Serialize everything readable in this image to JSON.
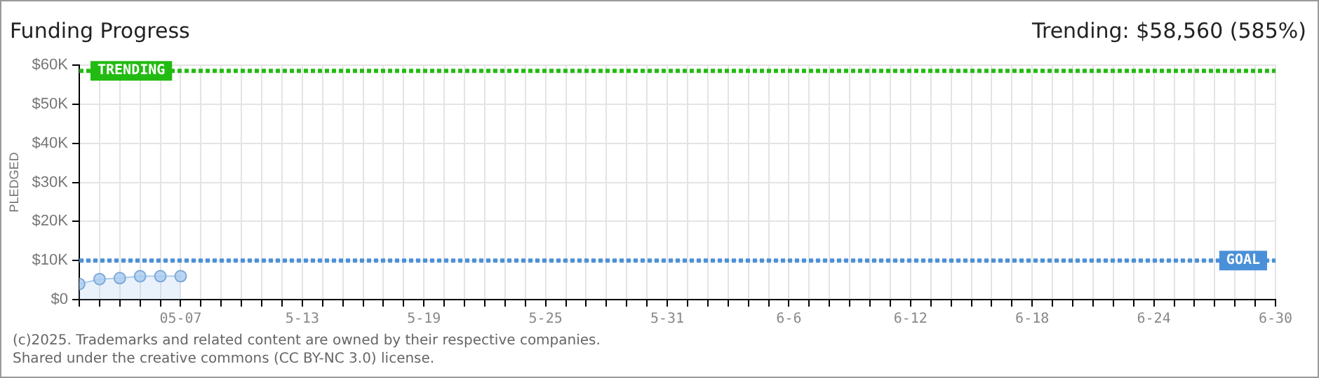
{
  "chart_data": {
    "type": "area",
    "title": "Funding Progress",
    "ylabel": "PLEDGED",
    "annotations": [
      "Trending: $58,560 (585%)",
      "(c)2025. Trademarks and related content are owned by their respective companies.",
      "Shared under the creative commons (CC BY-NC 3.0) license."
    ],
    "x": [
      "--05-02",
      "--05-03",
      "--05-04",
      "--05-05",
      "--05-06",
      "--05-07"
    ],
    "series": [
      {
        "color": "#a8ccf0",
        "values": [
          4000,
          5250,
          5500,
          6000,
          6000,
          6000
        ]
      }
    ],
    "marker": "circle",
    "grid": true,
    "legend": false,
    "xlim": [
      "--05-02",
      "--06-30"
    ],
    "xticks": [
      {
        "value": "--05-02",
        "label": null
      },
      {
        "value": "--05-03",
        "label": null
      },
      {
        "value": "--05-04",
        "label": null
      },
      {
        "value": "--05-05",
        "label": null
      },
      {
        "value": "--05-06",
        "label": null
      },
      {
        "value": "--05-07",
        "label": "05-07"
      },
      {
        "value": "--05-08",
        "label": null
      },
      {
        "value": "--05-09",
        "label": null
      },
      {
        "value": "--05-10",
        "label": null
      },
      {
        "value": "--05-11",
        "label": null
      },
      {
        "value": "--05-12",
        "label": null
      },
      {
        "value": "--05-13",
        "label": "5-13"
      },
      {
        "value": "--05-14",
        "label": null
      },
      {
        "value": "--05-15",
        "label": null
      },
      {
        "value": "--05-16",
        "label": null
      },
      {
        "value": "--05-17",
        "label": null
      },
      {
        "value": "--05-18",
        "label": null
      },
      {
        "value": "--05-19",
        "label": "5-19"
      },
      {
        "value": "--05-20",
        "label": null
      },
      {
        "value": "--05-21",
        "label": null
      },
      {
        "value": "--05-22",
        "label": null
      },
      {
        "value": "--05-23",
        "label": null
      },
      {
        "value": "--05-24",
        "label": null
      },
      {
        "value": "--05-25",
        "label": "5-25"
      },
      {
        "value": "--05-26",
        "label": null
      },
      {
        "value": "--05-27",
        "label": null
      },
      {
        "value": "--05-28",
        "label": null
      },
      {
        "value": "--05-29",
        "label": null
      },
      {
        "value": "--05-30",
        "label": null
      },
      {
        "value": "--05-31",
        "label": "5-31"
      },
      {
        "value": "--06-01",
        "label": null
      },
      {
        "value": "--06-02",
        "label": null
      },
      {
        "value": "--06-03",
        "label": null
      },
      {
        "value": "--06-04",
        "label": null
      },
      {
        "value": "--06-05",
        "label": null
      },
      {
        "value": "--06-06",
        "label": "6-6"
      },
      {
        "value": "--06-07",
        "label": null
      },
      {
        "value": "--06-08",
        "label": null
      },
      {
        "value": "--06-09",
        "label": null
      },
      {
        "value": "--06-10",
        "label": null
      },
      {
        "value": "--06-11",
        "label": null
      },
      {
        "value": "--06-12",
        "label": "6-12"
      },
      {
        "value": "--06-13",
        "label": null
      },
      {
        "value": "--06-14",
        "label": null
      },
      {
        "value": "--06-15",
        "label": null
      },
      {
        "value": "--06-16",
        "label": null
      },
      {
        "value": "--06-17",
        "label": null
      },
      {
        "value": "--06-18",
        "label": "6-18"
      },
      {
        "value": "--06-19",
        "label": null
      },
      {
        "value": "--06-20",
        "label": null
      },
      {
        "value": "--06-21",
        "label": null
      },
      {
        "value": "--06-22",
        "label": null
      },
      {
        "value": "--06-23",
        "label": null
      },
      {
        "value": "--06-24",
        "label": "6-24"
      },
      {
        "value": "--06-25",
        "label": null
      },
      {
        "value": "--06-26",
        "label": null
      },
      {
        "value": "--06-27",
        "label": null
      },
      {
        "value": "--06-28",
        "label": null
      },
      {
        "value": "--06-29",
        "label": null
      },
      {
        "value": "--06-30",
        "label": "6-30"
      }
    ],
    "ylim": [
      0,
      60000
    ],
    "yticks": [
      {
        "value": 0,
        "label": "$0"
      },
      {
        "value": 10000,
        "label": "$10K"
      },
      {
        "value": 20000,
        "label": "$20K"
      },
      {
        "value": 30000,
        "label": "$30K"
      },
      {
        "value": 40000,
        "label": "$40K"
      },
      {
        "value": 50000,
        "label": "$50K"
      },
      {
        "value": 60000,
        "label": "$60K"
      }
    ],
    "ref_lines": [
      {
        "axis": "y",
        "value": 58560,
        "label": "TRENDING",
        "color": "#22bb11",
        "line_style": "dotted"
      },
      {
        "axis": "y",
        "value": 10000,
        "label": "GOAL",
        "color": "#4a90d9",
        "line_style": "dotted"
      }
    ]
  }
}
